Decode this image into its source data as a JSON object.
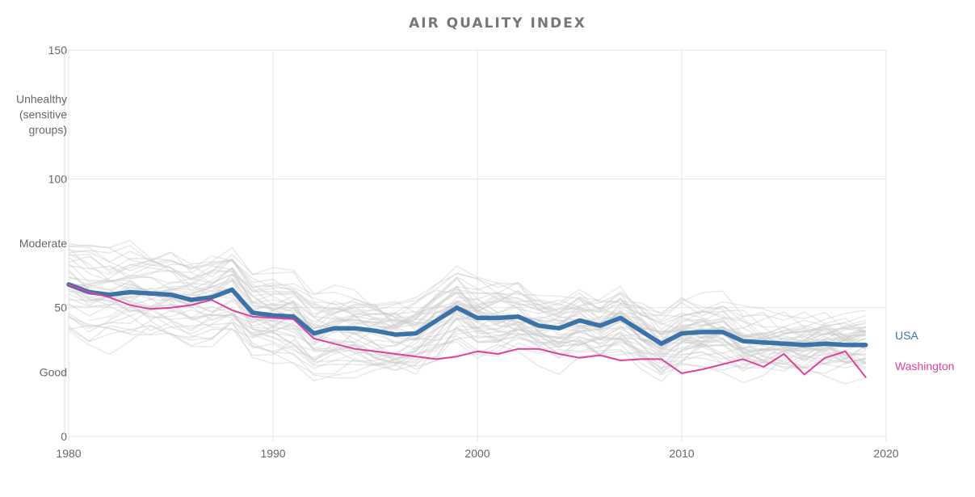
{
  "chart_data": {
    "type": "line",
    "title": "AIR QUALITY INDEX",
    "xlabel": "",
    "ylabel": "",
    "xlim": [
      1980,
      2020
    ],
    "ylim": [
      0,
      150
    ],
    "x_ticks": [
      1980,
      1990,
      2000,
      2010,
      2020
    ],
    "y_ticks": [
      0,
      50,
      100,
      150
    ],
    "y_band_labels": [
      {
        "y": 25,
        "text": "Good"
      },
      {
        "y": 75,
        "text": "Moderate"
      },
      {
        "y": 125,
        "text": "Unhealthy (sensitive groups)"
      }
    ],
    "grid": true,
    "highlight_series": [
      {
        "name": "USA",
        "color": "#3b73a8",
        "x": [
          1980,
          1981,
          1982,
          1983,
          1984,
          1985,
          1986,
          1987,
          1988,
          1989,
          1990,
          1991,
          1992,
          1993,
          1994,
          1995,
          1996,
          1997,
          1998,
          1999,
          2000,
          2001,
          2002,
          2003,
          2004,
          2005,
          2006,
          2007,
          2008,
          2009,
          2010,
          2011,
          2012,
          2013,
          2014,
          2015,
          2016,
          2017,
          2018,
          2019
        ],
        "values": [
          59,
          56,
          55,
          56,
          55.5,
          55,
          53,
          54,
          57,
          48,
          47,
          46.5,
          40,
          42,
          42,
          41,
          39.5,
          40,
          45,
          50,
          46,
          46,
          46.5,
          43,
          42,
          45,
          43,
          46,
          41,
          36,
          40,
          40.5,
          40.5,
          37,
          36.5,
          36,
          35.5,
          36,
          35.5,
          35.5
        ]
      },
      {
        "name": "Washington",
        "color": "#e0409a",
        "x": [
          1980,
          1981,
          1982,
          1983,
          1984,
          1985,
          1986,
          1987,
          1988,
          1989,
          1990,
          1991,
          1992,
          1993,
          1994,
          1995,
          1996,
          1997,
          1998,
          1999,
          2000,
          2001,
          2002,
          2003,
          2004,
          2005,
          2006,
          2007,
          2008,
          2009,
          2010,
          2011,
          2012,
          2013,
          2014,
          2015,
          2016,
          2017,
          2018,
          2019
        ],
        "values": [
          59,
          56,
          54,
          51,
          49.5,
          50,
          51,
          53,
          49,
          46.5,
          46,
          45.5,
          38,
          36,
          34,
          33,
          32,
          31,
          30,
          31,
          33,
          32,
          34,
          34,
          32,
          30.5,
          31.5,
          29.5,
          30,
          30,
          24.5,
          26,
          28,
          30,
          27,
          32,
          24,
          30.5,
          33,
          23
        ]
      }
    ],
    "background_series_count": 50
  }
}
